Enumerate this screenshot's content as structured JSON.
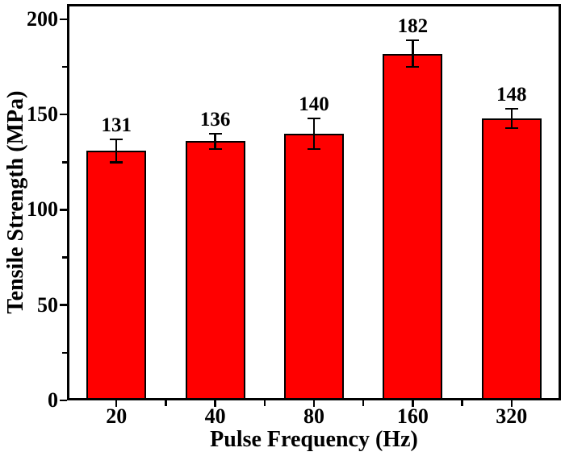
{
  "chart_data": {
    "type": "bar",
    "title": "",
    "xlabel": "Pulse Frequency (Hz)",
    "ylabel": "Tensile Strength (MPa)",
    "categories": [
      "20",
      "40",
      "80",
      "160",
      "320"
    ],
    "values": [
      131,
      136,
      140,
      182,
      148
    ],
    "errors": [
      6,
      4,
      8,
      7,
      5
    ],
    "value_labels": [
      "131",
      "136",
      "140",
      "182",
      "148"
    ],
    "ylim": [
      0,
      208
    ],
    "y_major_ticks": [
      0,
      50,
      100,
      150,
      200
    ],
    "y_minor_ticks": [
      25,
      75,
      125,
      175
    ],
    "bar_color": "#FF0000",
    "bar_edge_color": "#000000",
    "error_bar_color": "#000000",
    "text_color": "#000000",
    "grid": false,
    "legend": "none"
  }
}
